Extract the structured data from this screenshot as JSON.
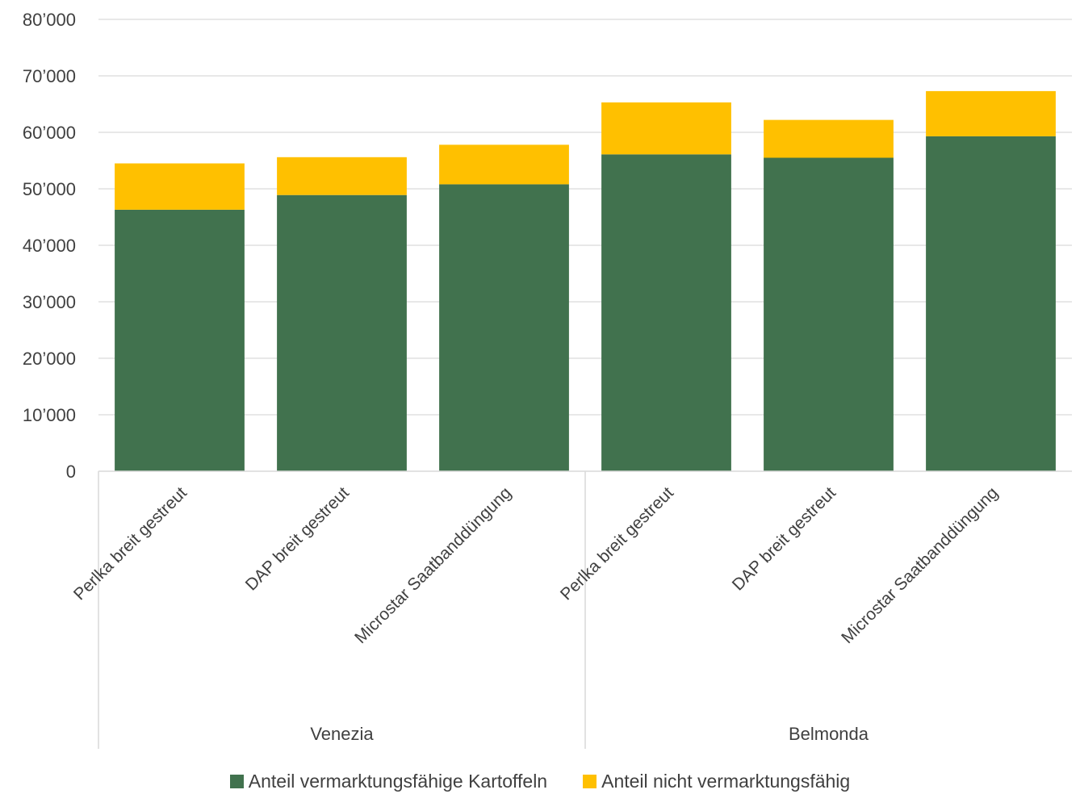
{
  "chart_data": {
    "type": "bar",
    "stacked": true,
    "groups": [
      {
        "name": "Venezia",
        "categories": [
          "Perlka breit gestreut",
          "DAP breit gestreut",
          "Microstar Saatbanddüngung"
        ]
      },
      {
        "name": "Belmonda",
        "categories": [
          "Perlka breit gestreut",
          "DAP breit gestreut",
          "Microstar Saatbanddüngung"
        ]
      }
    ],
    "series": [
      {
        "name": "Anteil vermarktungsfähige Kartoffeln",
        "color": "#41724E",
        "values": [
          46300,
          48900,
          50800,
          56100,
          55500,
          59300
        ]
      },
      {
        "name": "Anteil nicht vermarktungsfähig",
        "color": "#FFC000",
        "values": [
          8200,
          6700,
          7000,
          9200,
          6700,
          8000
        ]
      }
    ],
    "ylim": [
      0,
      80000
    ],
    "yticks": [
      0,
      10000,
      20000,
      30000,
      40000,
      50000,
      60000,
      70000,
      80000
    ],
    "ytick_labels": [
      "0",
      "10’000",
      "20’000",
      "30’000",
      "40’000",
      "50’000",
      "60’000",
      "70’000",
      "80’000"
    ],
    "grid": true,
    "legend_position": "bottom"
  }
}
